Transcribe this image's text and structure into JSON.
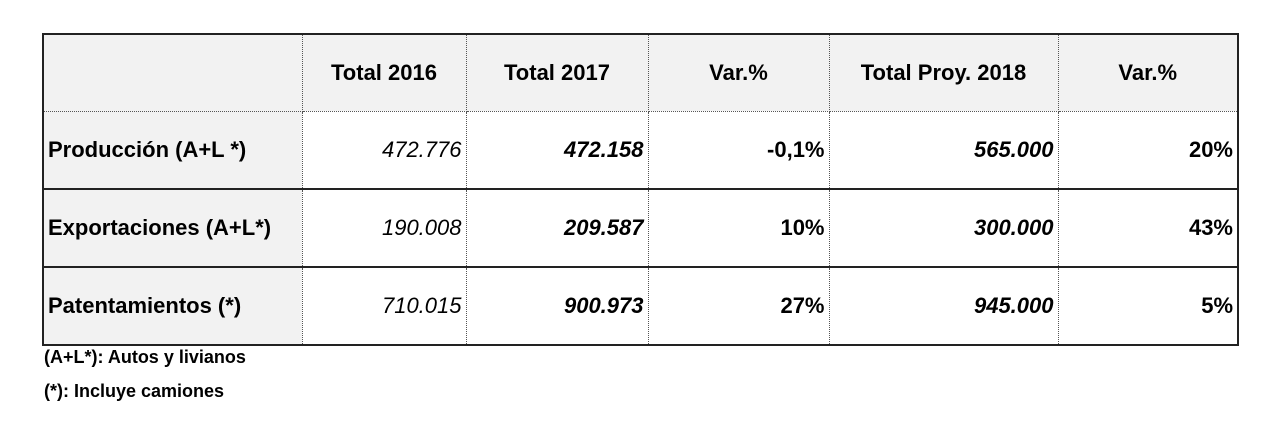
{
  "table": {
    "header": [
      "Total 2016",
      "Total 2017",
      "Var.%",
      "Total Proy. 2018",
      "Var.%"
    ],
    "rows": [
      {
        "label": "Producción (A+L *)",
        "cells": [
          "472.776",
          "472.158",
          "-0,1%",
          "565.000",
          "20%"
        ]
      },
      {
        "label": "Exportaciones (A+L*)",
        "cells": [
          "190.008",
          "209.587",
          "10%",
          "300.000",
          "43%"
        ]
      },
      {
        "label": "Patentamientos (*)",
        "cells": [
          "710.015",
          "900.973",
          "27%",
          "945.000",
          "5%"
        ]
      }
    ]
  },
  "footnotes": [
    "(A+L*): Autos y livianos",
    "(*): Incluye camiones"
  ]
}
